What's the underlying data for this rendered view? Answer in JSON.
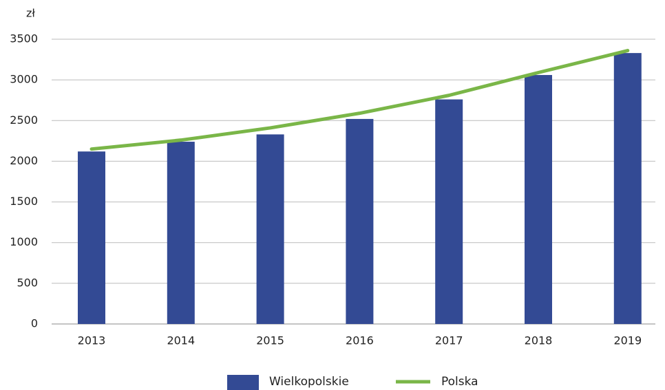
{
  "chart_data": {
    "type": "bar_line",
    "y_label": "zł",
    "categories": [
      "2013",
      "2014",
      "2015",
      "2016",
      "2017",
      "2018",
      "2019"
    ],
    "series": [
      {
        "name": "Wielkopolskie",
        "type": "bar",
        "color": "#334a94",
        "values": [
          2120,
          2240,
          2330,
          2520,
          2760,
          3060,
          3330
        ]
      },
      {
        "name": "Polska",
        "type": "line",
        "color": "#7ab648",
        "values": [
          2150,
          2260,
          2410,
          2590,
          2810,
          3090,
          3360
        ]
      }
    ],
    "ylim": [
      0,
      3500
    ],
    "yticks": [
      0,
      500,
      1000,
      1500,
      2000,
      2500,
      3000,
      3500
    ],
    "grid": true
  }
}
